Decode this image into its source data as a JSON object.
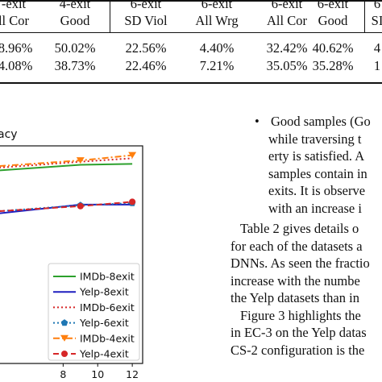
{
  "table": {
    "header_row1": [
      "-exit",
      "4-exit",
      "6-exit",
      "6-exit",
      "6-exit",
      "6-exit",
      "6"
    ],
    "header_row2": [
      "ll Cor",
      "Good",
      "SD Viol",
      "All Wrg",
      "All Cor",
      "Good",
      "SI"
    ],
    "row1": [
      "8.96%",
      "50.02%",
      "22.56%",
      "4.40%",
      "32.42%",
      "40.62%",
      "4"
    ],
    "row2": [
      "4.08%",
      "38.73%",
      "22.46%",
      "7.21%",
      "35.05%",
      "35.28%",
      "1"
    ]
  },
  "figure": {
    "title_fragment": "acy"
  },
  "chart_data": {
    "type": "line",
    "title": "acy",
    "xlabel": "",
    "ylabel": "",
    "x_ticks": [
      8,
      10,
      12
    ],
    "xlim": [
      4.3,
      12.6
    ],
    "ylim": [
      0,
      1
    ],
    "legend_placement": "bottom-right",
    "series": [
      {
        "name": "IMDb-8exit",
        "color": "#2ca02c",
        "style": "solid",
        "marker": "none",
        "x": [
          4.3,
          9,
          12
        ],
        "y": [
          0.887,
          0.913,
          0.917
        ]
      },
      {
        "name": "Yelp-8exit",
        "color": "#1f1fbf",
        "style": "solid",
        "marker": "none",
        "x": [
          4.3,
          9,
          12
        ],
        "y": [
          0.69,
          0.73,
          0.73
        ]
      },
      {
        "name": "IMDb-6exit",
        "color": "#d62728",
        "style": "dotted",
        "marker": "none",
        "x": [
          4.3,
          9,
          12
        ],
        "y": [
          0.9,
          0.927,
          0.943
        ]
      },
      {
        "name": "Yelp-6exit",
        "color": "#1f77b4",
        "style": "dotted",
        "marker": "pentagon",
        "x": [
          4.3,
          9,
          12
        ],
        "y": [
          0.7,
          0.727,
          0.737
        ]
      },
      {
        "name": "IMDb-4exit",
        "color": "#ff7f0e",
        "style": "dashdot",
        "marker": "triangle-down",
        "x": [
          4.3,
          9,
          12
        ],
        "y": [
          0.907,
          0.933,
          0.957
        ]
      },
      {
        "name": "Yelp-4exit",
        "color": "#d62728",
        "style": "dashed",
        "marker": "circle",
        "x": [
          4.3,
          9,
          12
        ],
        "y": [
          0.7,
          0.723,
          0.743
        ]
      }
    ]
  },
  "text": {
    "bullet": "•",
    "lines_top": [
      "Good samples (Go",
      "while traversing t",
      "erty is satisfied. A",
      "samples contain in",
      "exits. It is observe",
      "with an increase i"
    ],
    "lines_bottom": [
      "Table 2 gives details o",
      "for each of the datasets a",
      "DNNs. As seen the fractio",
      "increase with the numbe",
      "the Yelp datasets than in",
      "Figure 3 highlights the",
      "in EC-3 on the Yelp datas",
      "CS-2 configuration is the"
    ]
  }
}
